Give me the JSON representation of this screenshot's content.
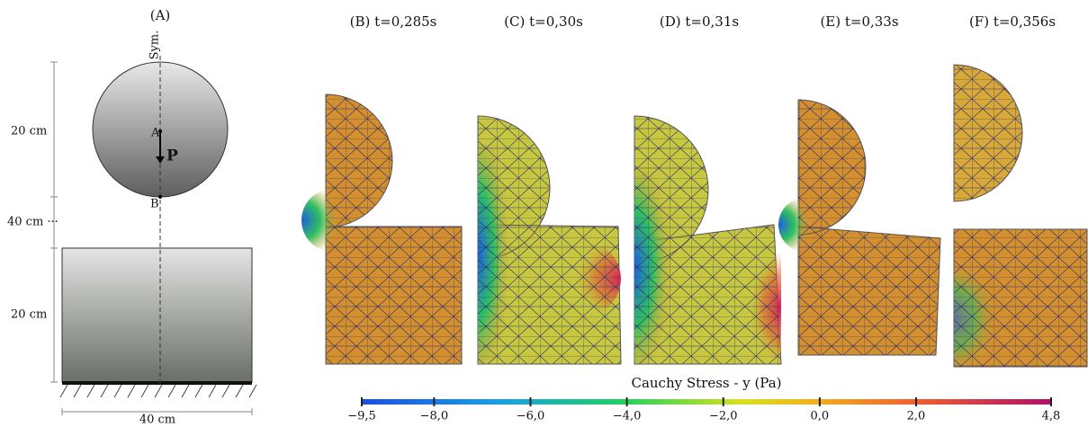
{
  "panel_a": {
    "label": "(A)",
    "sym": "Sym.",
    "point_a": "A",
    "point_b": "B",
    "force": "P",
    "dim_sphere": "20 cm",
    "dim_gap": "40 cm ···",
    "dim_block": "20 cm",
    "dim_width": "40 cm"
  },
  "snapshots": [
    {
      "label": "(B) t=0,285s"
    },
    {
      "label": "(C) t=0,30s"
    },
    {
      "label": "(D) t=0,31s"
    },
    {
      "label": "(E) t=0,33s"
    },
    {
      "label": "(F) t=0,356s"
    }
  ],
  "colorbar": {
    "title": "Cauchy Stress - y (Pa)",
    "lim": [
      -9.5,
      4.8
    ],
    "ticks": [
      {
        "value": -9.5,
        "label": "−9,5"
      },
      {
        "value": -8.0,
        "label": "−8,0"
      },
      {
        "value": -6.0,
        "label": "−6,0"
      },
      {
        "value": -4.0,
        "label": "−4,0"
      },
      {
        "value": -2.0,
        "label": "−2,0"
      },
      {
        "value": 0.0,
        "label": "0,0"
      },
      {
        "value": 2.0,
        "label": "2,0"
      },
      {
        "value": 4.8,
        "label": "4,8"
      }
    ]
  }
}
